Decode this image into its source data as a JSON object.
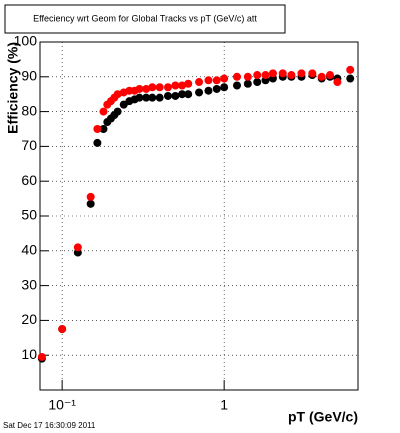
{
  "chart_data": {
    "type": "scatter",
    "title": "Effeciency wrt Geom for Global Tracks vs pT (GeV/c) att",
    "x_label": "pT (GeV/c)",
    "y_label": "Efficiency (%)",
    "footer": "Sat Dec 17 16:30:09 2011",
    "xlog": true,
    "grid": true,
    "xlim": [
      0.073,
      6.7
    ],
    "ylim": [
      0,
      100
    ],
    "xticks": [
      {
        "value": 0.1,
        "label": "10⁻¹"
      },
      1
    ],
    "yticks": [
      10,
      20,
      30,
      40,
      50,
      60,
      70,
      80,
      90,
      100
    ],
    "x": [
      0.075,
      0.1,
      0.125,
      0.15,
      0.165,
      0.18,
      0.19,
      0.2,
      0.21,
      0.22,
      0.24,
      0.26,
      0.28,
      0.3,
      0.33,
      0.36,
      0.4,
      0.45,
      0.5,
      0.55,
      0.6,
      0.7,
      0.8,
      0.9,
      1.0,
      1.2,
      1.4,
      1.6,
      1.8,
      2.0,
      2.3,
      2.6,
      3.0,
      3.5,
      4.0,
      4.5,
      5.0,
      6.0
    ],
    "series": [
      {
        "color": "#000000",
        "values": [
          9,
          17.5,
          39.5,
          53.5,
          71,
          75,
          77,
          78,
          79,
          80,
          82,
          83,
          83.5,
          84,
          84,
          84,
          84,
          84.5,
          84.5,
          85,
          85,
          85.5,
          86,
          86.5,
          87,
          87.5,
          88,
          88.5,
          89,
          89.5,
          90,
          90,
          90,
          90.5,
          89.5,
          90,
          89.5,
          89.5
        ]
      },
      {
        "color": "#ff0000",
        "values": [
          9.5,
          17.5,
          41,
          55.5,
          75,
          80,
          82,
          83,
          84,
          85,
          85.5,
          86,
          86,
          86.5,
          86.5,
          87,
          87,
          87,
          87.5,
          87.5,
          88,
          88.5,
          89,
          89,
          89.5,
          90,
          90,
          90.5,
          90.5,
          91,
          91,
          90.5,
          91,
          91,
          90,
          90.5,
          88.5,
          92
        ]
      }
    ]
  }
}
